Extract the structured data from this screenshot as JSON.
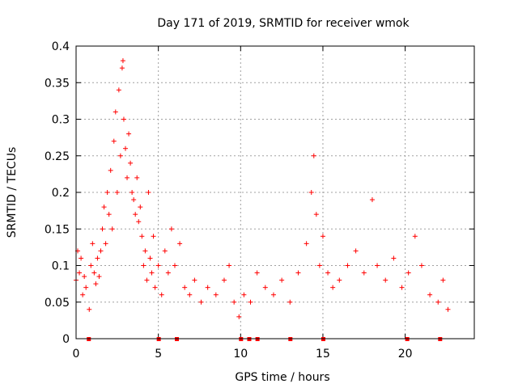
{
  "chart_data": {
    "type": "scatter",
    "title": "Day 171 of 2019, SRMTID for receiver wmok",
    "xlabel": "GPS time / hours",
    "ylabel": "SRMTID / TECUs",
    "xlim": [
      0,
      24.2
    ],
    "ylim": [
      0,
      0.4
    ],
    "x_ticks": [
      0,
      5,
      10,
      15,
      20
    ],
    "x_tick_labels": [
      "0",
      "5",
      "10",
      "15",
      "20"
    ],
    "y_ticks": [
      0,
      0.05,
      0.1,
      0.15,
      0.2,
      0.25,
      0.3,
      0.35,
      0.4
    ],
    "y_tick_labels": [
      "0",
      "0.05",
      "0.1",
      "0.15",
      "0.2",
      "0.25",
      "0.3",
      "0.35",
      "0.4"
    ],
    "grid": true,
    "marker": "+",
    "color": "#ff0000",
    "zero_markers_x": [
      0.75,
      5.0,
      6.1,
      10.0,
      10.5,
      11.0,
      13.0,
      15.0,
      20.1,
      22.1
    ],
    "series": [
      {
        "name": "SRMTID",
        "points": [
          [
            0.0,
            0.08
          ],
          [
            0.1,
            0.12
          ],
          [
            0.2,
            0.09
          ],
          [
            0.3,
            0.11
          ],
          [
            0.4,
            0.06
          ],
          [
            0.5,
            0.085
          ],
          [
            0.6,
            0.07
          ],
          [
            0.8,
            0.04
          ],
          [
            0.9,
            0.1
          ],
          [
            1.0,
            0.13
          ],
          [
            1.1,
            0.09
          ],
          [
            1.2,
            0.075
          ],
          [
            1.3,
            0.11
          ],
          [
            1.4,
            0.085
          ],
          [
            1.5,
            0.12
          ],
          [
            1.6,
            0.15
          ],
          [
            1.7,
            0.18
          ],
          [
            1.8,
            0.13
          ],
          [
            1.9,
            0.2
          ],
          [
            2.0,
            0.17
          ],
          [
            2.1,
            0.23
          ],
          [
            2.2,
            0.15
          ],
          [
            2.3,
            0.27
          ],
          [
            2.4,
            0.31
          ],
          [
            2.5,
            0.2
          ],
          [
            2.6,
            0.34
          ],
          [
            2.7,
            0.25
          ],
          [
            2.8,
            0.37
          ],
          [
            2.85,
            0.38
          ],
          [
            2.9,
            0.3
          ],
          [
            3.0,
            0.26
          ],
          [
            3.1,
            0.22
          ],
          [
            3.2,
            0.28
          ],
          [
            3.3,
            0.24
          ],
          [
            3.4,
            0.2
          ],
          [
            3.5,
            0.19
          ],
          [
            3.6,
            0.17
          ],
          [
            3.7,
            0.22
          ],
          [
            3.8,
            0.16
          ],
          [
            3.9,
            0.18
          ],
          [
            4.0,
            0.14
          ],
          [
            4.1,
            0.1
          ],
          [
            4.2,
            0.12
          ],
          [
            4.3,
            0.08
          ],
          [
            4.4,
            0.2
          ],
          [
            4.5,
            0.11
          ],
          [
            4.6,
            0.09
          ],
          [
            4.7,
            0.14
          ],
          [
            4.8,
            0.07
          ],
          [
            5.0,
            0.1
          ],
          [
            5.2,
            0.06
          ],
          [
            5.4,
            0.12
          ],
          [
            5.6,
            0.09
          ],
          [
            5.8,
            0.15
          ],
          [
            6.0,
            0.1
          ],
          [
            6.3,
            0.13
          ],
          [
            6.6,
            0.07
          ],
          [
            6.9,
            0.06
          ],
          [
            7.2,
            0.08
          ],
          [
            7.6,
            0.05
          ],
          [
            8.0,
            0.07
          ],
          [
            8.5,
            0.06
          ],
          [
            9.0,
            0.08
          ],
          [
            9.3,
            0.1
          ],
          [
            9.6,
            0.05
          ],
          [
            9.9,
            0.03
          ],
          [
            10.2,
            0.06
          ],
          [
            10.6,
            0.05
          ],
          [
            11.0,
            0.09
          ],
          [
            11.5,
            0.07
          ],
          [
            12.0,
            0.06
          ],
          [
            12.5,
            0.08
          ],
          [
            13.0,
            0.05
          ],
          [
            13.5,
            0.09
          ],
          [
            14.0,
            0.13
          ],
          [
            14.3,
            0.2
          ],
          [
            14.45,
            0.25
          ],
          [
            14.6,
            0.17
          ],
          [
            14.8,
            0.1
          ],
          [
            15.0,
            0.14
          ],
          [
            15.3,
            0.09
          ],
          [
            15.6,
            0.07
          ],
          [
            16.0,
            0.08
          ],
          [
            16.5,
            0.1
          ],
          [
            17.0,
            0.12
          ],
          [
            17.5,
            0.09
          ],
          [
            18.0,
            0.19
          ],
          [
            18.3,
            0.1
          ],
          [
            18.8,
            0.08
          ],
          [
            19.3,
            0.11
          ],
          [
            19.8,
            0.07
          ],
          [
            20.2,
            0.09
          ],
          [
            20.6,
            0.14
          ],
          [
            21.0,
            0.1
          ],
          [
            21.5,
            0.06
          ],
          [
            22.0,
            0.05
          ],
          [
            22.3,
            0.08
          ],
          [
            22.6,
            0.04
          ]
        ]
      }
    ]
  }
}
